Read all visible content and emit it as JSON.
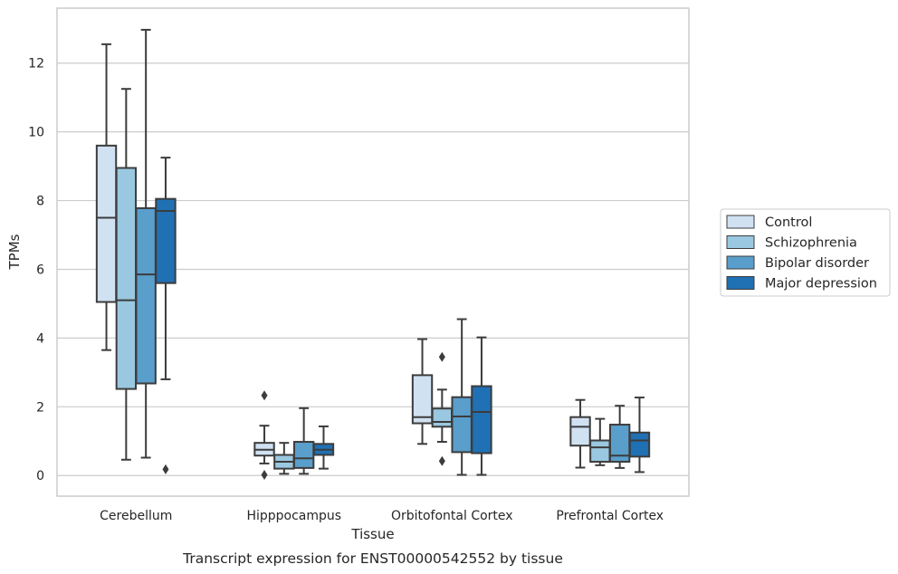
{
  "chart_data": {
    "type": "box",
    "title": "Transcript expression for ENST00000542552 by tissue",
    "xlabel": "Tissue",
    "ylabel": "TPMs",
    "ylim": [
      -0.6,
      13.6
    ],
    "yticks": [
      0,
      2,
      4,
      6,
      8,
      10,
      12
    ],
    "grid": true,
    "legend_position": "right",
    "categories": [
      "Cerebellum",
      "Hipppocampus",
      "Orbitofontal Cortex",
      "Prefrontal Cortex"
    ],
    "series": [
      {
        "name": "Control",
        "color": "#d0e1f2",
        "boxes": [
          {
            "whislo": 3.65,
            "q1": 5.05,
            "med": 7.5,
            "q3": 9.6,
            "whishi": 12.55,
            "fliers": []
          },
          {
            "whislo": 0.35,
            "q1": 0.58,
            "med": 0.75,
            "q3": 0.95,
            "whishi": 1.45,
            "fliers": [
              2.33,
              0.02
            ]
          },
          {
            "whislo": 0.92,
            "q1": 1.52,
            "med": 1.7,
            "q3": 2.92,
            "whishi": 3.97,
            "fliers": []
          },
          {
            "whislo": 0.23,
            "q1": 0.87,
            "med": 1.42,
            "q3": 1.7,
            "whishi": 2.2,
            "fliers": []
          }
        ]
      },
      {
        "name": "Schizophrenia",
        "color": "#9ac8e0",
        "boxes": [
          {
            "whislo": 0.46,
            "q1": 2.52,
            "med": 5.1,
            "q3": 8.95,
            "whishi": 11.25,
            "fliers": []
          },
          {
            "whislo": 0.05,
            "q1": 0.2,
            "med": 0.4,
            "q3": 0.6,
            "whishi": 0.95,
            "fliers": []
          },
          {
            "whislo": 0.98,
            "q1": 1.42,
            "med": 1.56,
            "q3": 1.95,
            "whishi": 2.5,
            "fliers": [
              3.45,
              0.42
            ]
          },
          {
            "whislo": 0.3,
            "q1": 0.4,
            "med": 0.82,
            "q3": 1.02,
            "whishi": 1.65,
            "fliers": []
          }
        ]
      },
      {
        "name": "Bipolar disorder",
        "color": "#5a9ecb",
        "boxes": [
          {
            "whislo": 0.52,
            "q1": 2.68,
            "med": 5.85,
            "q3": 7.78,
            "whishi": 12.97,
            "fliers": []
          },
          {
            "whislo": 0.05,
            "q1": 0.22,
            "med": 0.5,
            "q3": 0.98,
            "whishi": 1.96,
            "fliers": []
          },
          {
            "whislo": 0.02,
            "q1": 0.68,
            "med": 1.72,
            "q3": 2.28,
            "whishi": 4.55,
            "fliers": []
          },
          {
            "whislo": 0.22,
            "q1": 0.4,
            "med": 0.58,
            "q3": 1.48,
            "whishi": 2.03,
            "fliers": []
          }
        ]
      },
      {
        "name": "Major depression",
        "color": "#2070b4",
        "boxes": [
          {
            "whislo": 2.8,
            "q1": 5.6,
            "med": 7.7,
            "q3": 8.05,
            "whishi": 9.25,
            "fliers": [
              0.18
            ]
          },
          {
            "whislo": 0.2,
            "q1": 0.6,
            "med": 0.75,
            "q3": 0.92,
            "whishi": 1.43,
            "fliers": []
          },
          {
            "whislo": 0.02,
            "q1": 0.65,
            "med": 1.85,
            "q3": 2.6,
            "whishi": 4.02,
            "fliers": []
          },
          {
            "whislo": 0.1,
            "q1": 0.55,
            "med": 1.02,
            "q3": 1.25,
            "whishi": 2.27,
            "fliers": []
          }
        ]
      }
    ]
  }
}
